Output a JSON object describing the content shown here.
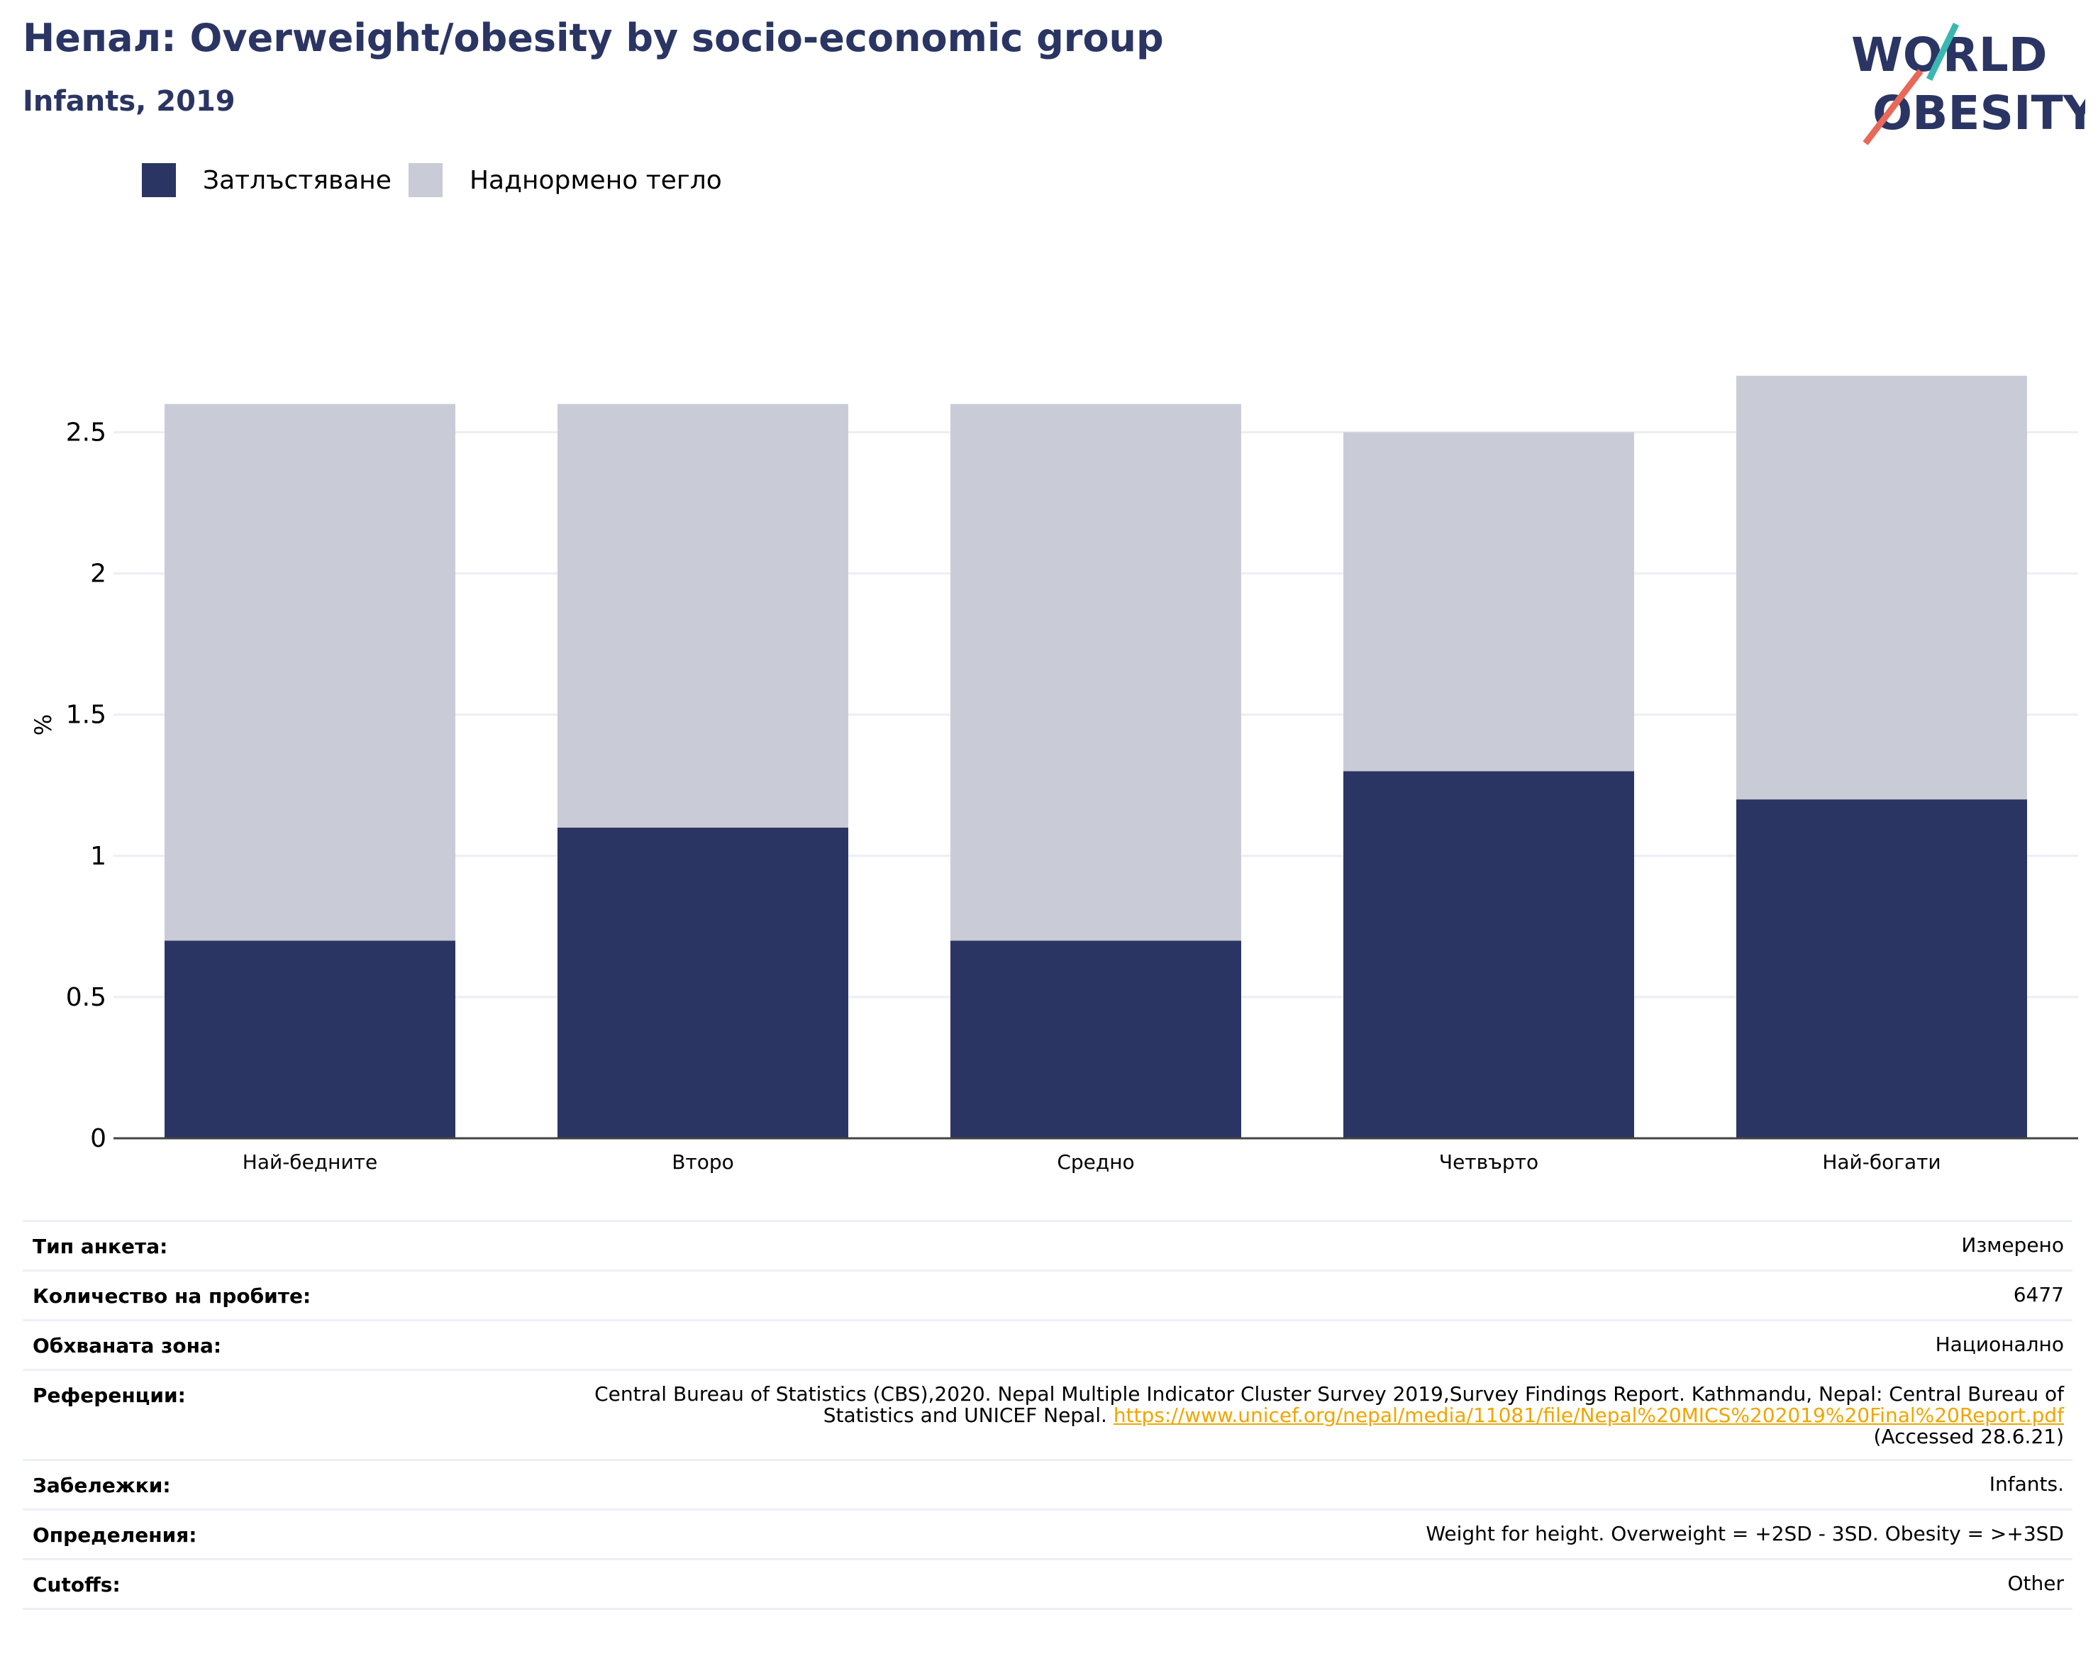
{
  "header": {
    "title": "Непал: Overweight/obesity by socio-economic group",
    "subtitle": "Infants, 2019"
  },
  "logo": {
    "line1": "WORLD",
    "line2": "OBESITY",
    "colors": {
      "text": "#2a3563",
      "slash_top": "#3ab7b0",
      "slash_bottom": "#e8685a"
    }
  },
  "legend": {
    "items": [
      {
        "label": "Затлъстяване",
        "color": "#2a3563"
      },
      {
        "label": "Наднормено тегло",
        "color": "#c9cbd6"
      }
    ]
  },
  "chart_data": {
    "type": "bar",
    "stacked": true,
    "categories": [
      "Най-бедните",
      "Второ",
      "Средно",
      "Четвърто",
      "Най-богати"
    ],
    "series": [
      {
        "name": "Затлъстяване",
        "values": [
          0.7,
          1.1,
          0.7,
          1.3,
          1.2
        ],
        "color": "#2a3563"
      },
      {
        "name": "Наднормено тегло",
        "values": [
          1.9,
          1.5,
          1.9,
          1.2,
          1.5
        ],
        "color": "#c9cbd6"
      }
    ],
    "ylabel": "%",
    "ylim": [
      0,
      2.8
    ],
    "yticks": [
      0,
      0.5,
      1,
      1.5,
      2,
      2.5
    ],
    "ytick_labels": [
      "0",
      "0.5",
      "1",
      "1.5",
      "2",
      "2.5"
    ],
    "grid": true,
    "legend_position": "top-left"
  },
  "info": {
    "survey_type": {
      "label": "Тип анкета:",
      "value": "Измерено"
    },
    "sample_size": {
      "label": "Количество на пробите:",
      "value": "6477"
    },
    "area": {
      "label": "Обхваната зона:",
      "value": "Национално"
    },
    "references": {
      "label": "Референции:",
      "text": "Central Bureau of Statistics (CBS),2020. Nepal Multiple Indicator Cluster Survey 2019,Survey Findings Report. Kathmandu, Nepal: Central Bureau of Statistics and UNICEF Nepal.",
      "link": "https://www.unicef.org/nepal/media/11081/file/Nepal%20MICS%202019%20Final%20Report.pdf",
      "accessed": "(Accessed 28.6.21)"
    },
    "notes": {
      "label": "Забележки:",
      "value": "Infants."
    },
    "definitions": {
      "label": "Определения:",
      "value": "Weight for height. Overweight = +2SD - 3SD. Obesity = >+3SD"
    },
    "cutoffs": {
      "label": "Cutoffs:",
      "value": "Other"
    }
  }
}
